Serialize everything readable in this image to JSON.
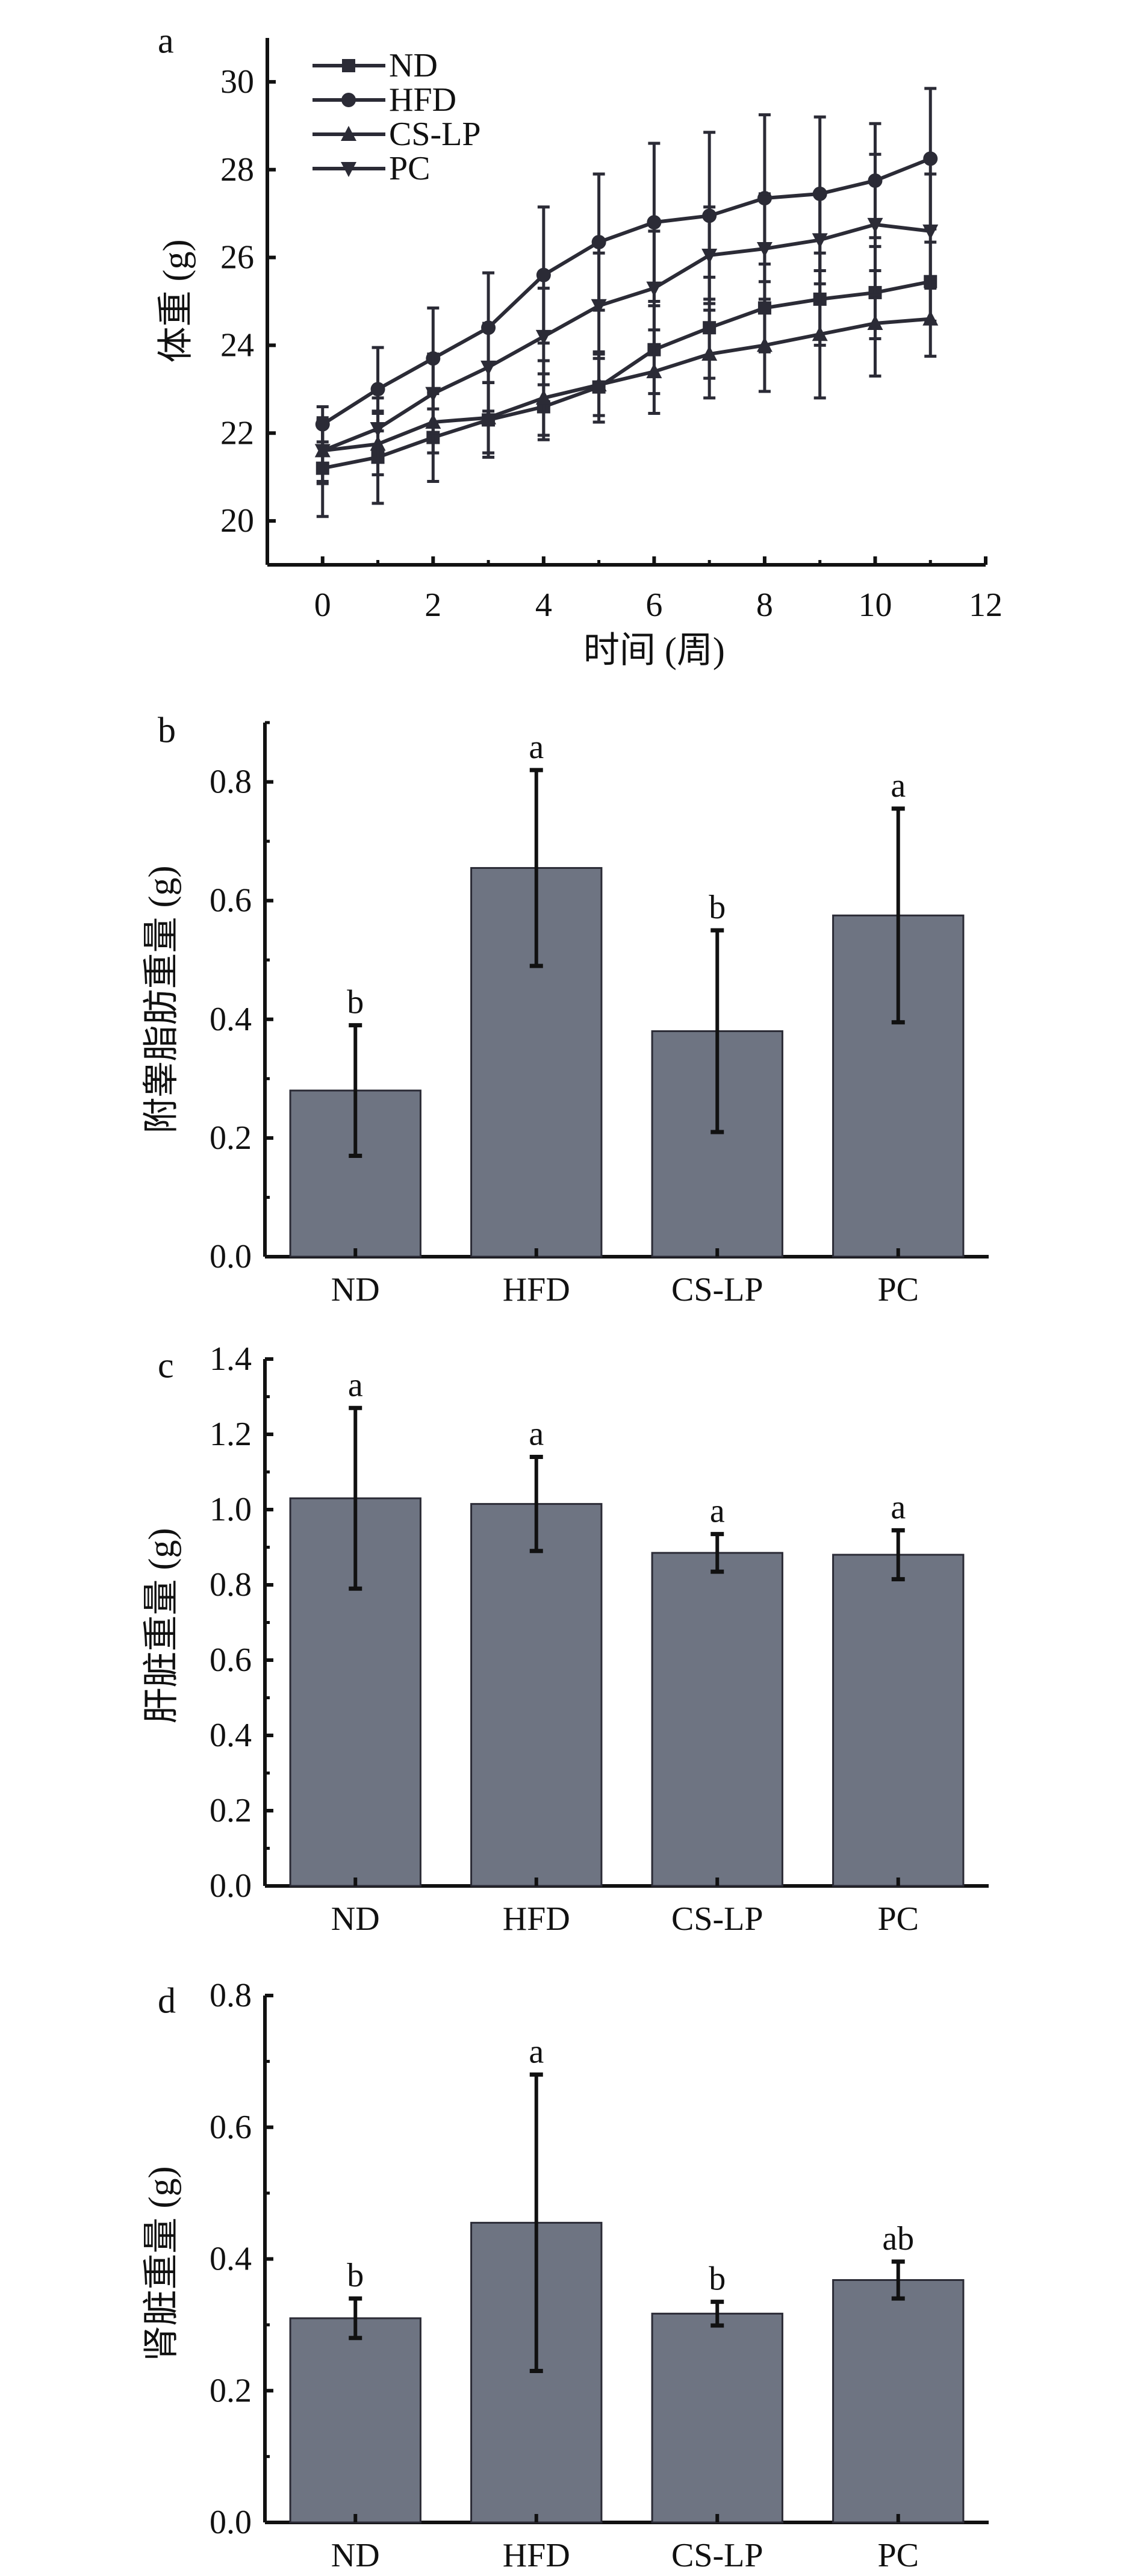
{
  "colors": {
    "line": "#2b2b36",
    "bar_fill": "#6e7482",
    "bar_edge": "#2b2b36",
    "axis": "#111111"
  },
  "chart_data": [
    {
      "panel_label": "a",
      "type": "line",
      "title": "",
      "xlabel": "时间 (周)",
      "ylabel": "体重 (g)",
      "xlim": [
        -1,
        12
      ],
      "ylim": [
        19,
        31
      ],
      "xticks": [
        "0",
        "2",
        "4",
        "6",
        "8",
        "10",
        "12"
      ],
      "yticks": [
        "20",
        "22",
        "24",
        "26",
        "28",
        "30"
      ],
      "legend_position": "top-left",
      "x": [
        0,
        1,
        2,
        3,
        4,
        5,
        6,
        7,
        8,
        9,
        10,
        11
      ],
      "series": [
        {
          "name": "ND",
          "marker": "square",
          "values": [
            21.2,
            21.45,
            21.9,
            22.3,
            22.6,
            23.05,
            23.9,
            24.4,
            24.85,
            25.05,
            25.2,
            25.45
          ],
          "error": [
            1.1,
            1.05,
            1.0,
            0.85,
            0.75,
            0.8,
            1.0,
            1.15,
            1.0,
            1.05,
            1.05,
            0.9
          ]
        },
        {
          "name": "HFD",
          "marker": "circle",
          "values": [
            22.2,
            23.0,
            23.7,
            24.4,
            25.6,
            26.35,
            26.8,
            26.95,
            27.35,
            27.45,
            27.75,
            28.25
          ],
          "error": [
            0.4,
            0.95,
            1.15,
            1.25,
            1.55,
            1.55,
            1.8,
            1.9,
            1.9,
            1.75,
            1.3,
            1.6
          ]
        },
        {
          "name": "CS-LP",
          "marker": "triangle-up",
          "values": [
            21.6,
            21.75,
            22.25,
            22.35,
            22.8,
            23.1,
            23.4,
            23.8,
            24.0,
            24.25,
            24.5,
            24.6
          ],
          "error": [
            0.7,
            0.7,
            0.7,
            0.8,
            0.85,
            0.7,
            0.95,
            1.0,
            1.05,
            1.45,
            1.2,
            0.85
          ]
        },
        {
          "name": "PC",
          "marker": "triangle-down",
          "values": [
            21.6,
            22.1,
            22.9,
            23.5,
            24.2,
            24.9,
            25.3,
            26.05,
            26.2,
            26.4,
            26.75,
            26.6
          ],
          "error": [
            0.75,
            0.7,
            0.9,
            1.0,
            1.1,
            1.2,
            1.3,
            1.1,
            1.25,
            1.0,
            1.6,
            1.3
          ]
        }
      ]
    },
    {
      "panel_label": "b",
      "type": "bar",
      "ylabel": "附睾脂肪重量 (g)",
      "ylim": [
        0,
        0.9
      ],
      "yticks": [
        "0.0",
        "0.2",
        "0.4",
        "0.6",
        "0.8"
      ],
      "categories": [
        "ND",
        "HFD",
        "CS-LP",
        "PC"
      ],
      "values": [
        0.28,
        0.655,
        0.38,
        0.575
      ],
      "error": [
        0.11,
        0.165,
        0.17,
        0.18
      ],
      "significance": [
        "b",
        "a",
        "b",
        "a"
      ]
    },
    {
      "panel_label": "c",
      "type": "bar",
      "ylabel": "肝脏重量 (g)",
      "ylim": [
        0,
        1.4
      ],
      "yticks": [
        "0.0",
        "0.2",
        "0.4",
        "0.6",
        "0.8",
        "1.0",
        "1.2",
        "1.4"
      ],
      "categories": [
        "ND",
        "HFD",
        "CS-LP",
        "PC"
      ],
      "values": [
        1.03,
        1.015,
        0.885,
        0.88
      ],
      "error": [
        0.24,
        0.125,
        0.05,
        0.065
      ],
      "significance": [
        "a",
        "a",
        "a",
        "a"
      ]
    },
    {
      "panel_label": "d",
      "type": "bar",
      "ylabel": "肾脏重量 (g)",
      "ylim": [
        0,
        0.8
      ],
      "yticks": [
        "0.0",
        "0.2",
        "0.4",
        "0.6",
        "0.8"
      ],
      "categories": [
        "ND",
        "HFD",
        "CS-LP",
        "PC"
      ],
      "values": [
        0.31,
        0.455,
        0.317,
        0.368
      ],
      "error": [
        0.03,
        0.225,
        0.018,
        0.028
      ],
      "significance": [
        "b",
        "a",
        "b",
        "ab"
      ]
    }
  ]
}
